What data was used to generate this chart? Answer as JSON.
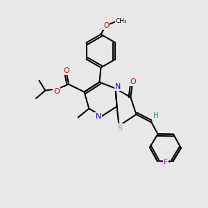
{
  "bg_color": "#e8e8e8",
  "atom_colors": {
    "C": "#000000",
    "N": "#0000cc",
    "O": "#cc0000",
    "S": "#aaaa00",
    "F": "#cc00cc",
    "H": "#008888"
  },
  "bond_color": "#000000",
  "lw": 1.5
}
